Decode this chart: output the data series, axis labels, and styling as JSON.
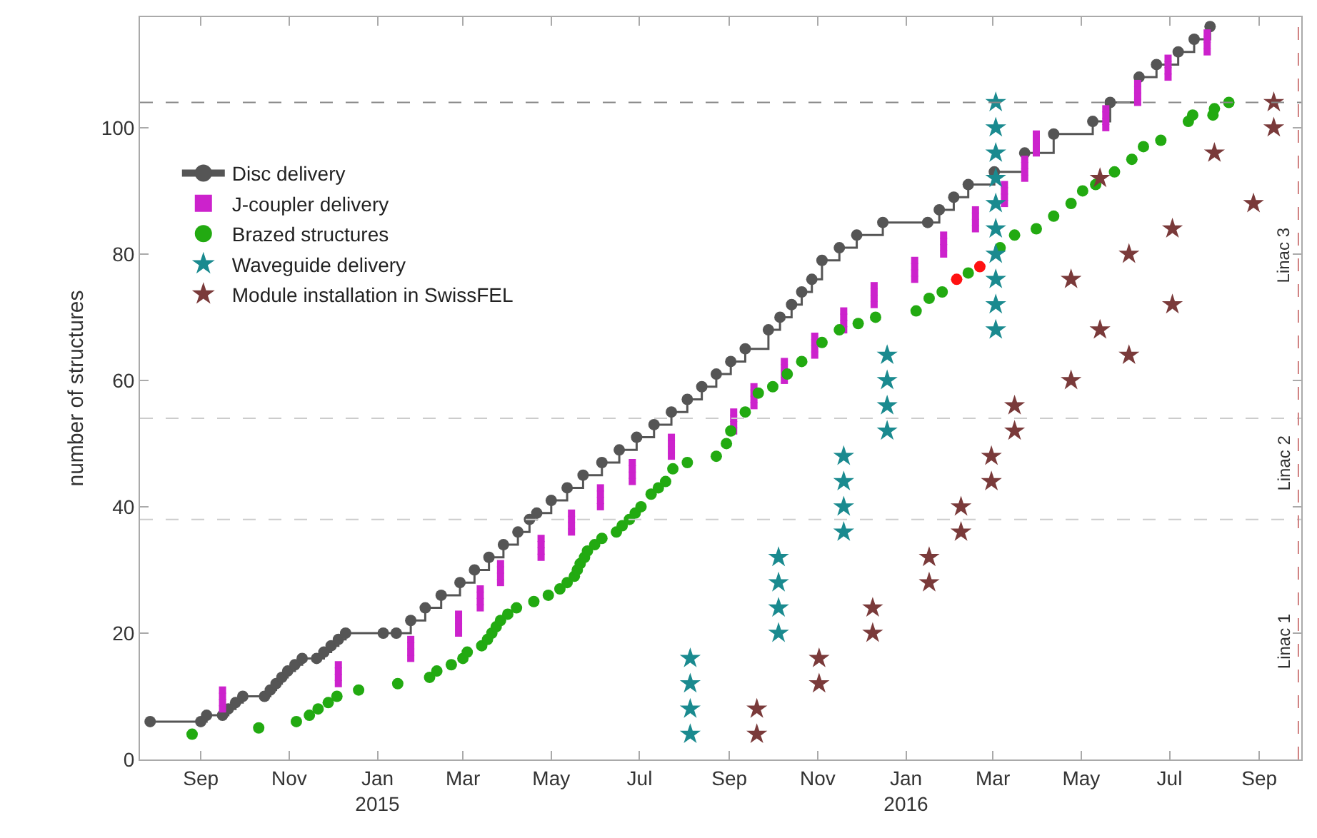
{
  "chart_data": {
    "type": "scatter",
    "ylabel": "number of structures",
    "xlim": [
      "2014-07-21",
      "2016-09-30"
    ],
    "xticks": [
      {
        "value": "2014-09-01",
        "label": "Sep"
      },
      {
        "value": "2014-11-01",
        "label": "Nov"
      },
      {
        "value": "2015-01-01",
        "label": "Jan\n2015"
      },
      {
        "value": "2015-03-01",
        "label": "Mar"
      },
      {
        "value": "2015-05-01",
        "label": "May"
      },
      {
        "value": "2015-07-01",
        "label": "Jul"
      },
      {
        "value": "2015-09-01",
        "label": "Sep"
      },
      {
        "value": "2015-11-01",
        "label": "Nov"
      },
      {
        "value": "2016-01-01",
        "label": "Jan\n2016"
      },
      {
        "value": "2016-03-01",
        "label": "Mar"
      },
      {
        "value": "2016-05-01",
        "label": "May"
      },
      {
        "value": "2016-07-01",
        "label": "Jul"
      },
      {
        "value": "2016-09-01",
        "label": "Sep"
      }
    ],
    "ylim": [
      0,
      117.5
    ],
    "yticks": [
      0,
      20,
      40,
      60,
      80,
      100
    ],
    "grid": false,
    "legend": "top left",
    "series": [
      {
        "name": "Disc delivery",
        "type": "step",
        "marker": "circle",
        "color": "#555555",
        "x": [
          "2014-07-28",
          "2014-09-01",
          "2014-09-05",
          "2014-09-16",
          "2014-09-20",
          "2014-09-25",
          "2014-09-30",
          "2014-10-15",
          "2014-10-19",
          "2014-10-23",
          "2014-10-27",
          "2014-10-31",
          "2014-11-05",
          "2014-11-10",
          "2014-11-20",
          "2014-11-25",
          "2014-11-30",
          "2014-12-05",
          "2014-12-10",
          "2015-01-05",
          "2015-01-14",
          "2015-01-24",
          "2015-02-03",
          "2015-02-14",
          "2015-02-27",
          "2015-03-09",
          "2015-03-19",
          "2015-03-29",
          "2015-04-08",
          "2015-04-16",
          "2015-04-21",
          "2015-05-01",
          "2015-05-12",
          "2015-05-23",
          "2015-06-05",
          "2015-06-17",
          "2015-06-29",
          "2015-07-11",
          "2015-07-23",
          "2015-08-03",
          "2015-08-13",
          "2015-08-23",
          "2015-09-02",
          "2015-09-12",
          "2015-09-28",
          "2015-10-06",
          "2015-10-14",
          "2015-10-21",
          "2015-10-28",
          "2015-11-04",
          "2015-11-16",
          "2015-11-28",
          "2015-12-16",
          "2016-01-16",
          "2016-01-24",
          "2016-02-03",
          "2016-02-13",
          "2016-03-02",
          "2016-03-23",
          "2016-04-12",
          "2016-05-09",
          "2016-05-21",
          "2016-06-10",
          "2016-06-22",
          "2016-07-07",
          "2016-07-18",
          "2016-07-29"
        ],
        "values": [
          6,
          6,
          7,
          7,
          8,
          9,
          10,
          10,
          11,
          12,
          13,
          14,
          15,
          16,
          16,
          17,
          18,
          19,
          20,
          20,
          20,
          22,
          24,
          26,
          28,
          30,
          32,
          34,
          36,
          38,
          39,
          41,
          43,
          45,
          47,
          49,
          51,
          53,
          55,
          57,
          59,
          61,
          63,
          65,
          68,
          70,
          72,
          74,
          76,
          79,
          81,
          83,
          85,
          85,
          87,
          89,
          91,
          93,
          96,
          99,
          101,
          104,
          108,
          110,
          112,
          114,
          116
        ]
      },
      {
        "name": "J-coupler delivery",
        "marker": "square",
        "color": "#cc22cc",
        "x": [
          "2014-09-16",
          "2014-09-16",
          "2014-09-16",
          "2014-09-16",
          "2014-12-05",
          "2014-12-05",
          "2014-12-05",
          "2014-12-05",
          "2015-01-24",
          "2015-01-24",
          "2015-01-24",
          "2015-01-24",
          "2015-02-26",
          "2015-02-26",
          "2015-02-26",
          "2015-02-26",
          "2015-03-13",
          "2015-03-13",
          "2015-03-13",
          "2015-03-13",
          "2015-03-27",
          "2015-03-27",
          "2015-03-27",
          "2015-03-27",
          "2015-04-24",
          "2015-04-24",
          "2015-04-24",
          "2015-04-24",
          "2015-05-15",
          "2015-05-15",
          "2015-05-15",
          "2015-05-15",
          "2015-06-04",
          "2015-06-04",
          "2015-06-04",
          "2015-06-04",
          "2015-06-26",
          "2015-06-26",
          "2015-06-26",
          "2015-06-26",
          "2015-07-23",
          "2015-07-23",
          "2015-07-23",
          "2015-07-23",
          "2015-09-04",
          "2015-09-04",
          "2015-09-04",
          "2015-09-04",
          "2015-09-18",
          "2015-09-18",
          "2015-09-18",
          "2015-09-18",
          "2015-10-09",
          "2015-10-09",
          "2015-10-09",
          "2015-10-09",
          "2015-10-30",
          "2015-10-30",
          "2015-10-30",
          "2015-10-30",
          "2015-11-19",
          "2015-11-19",
          "2015-11-19",
          "2015-11-19",
          "2015-12-10",
          "2015-12-10",
          "2015-12-10",
          "2015-12-10",
          "2016-01-07",
          "2016-01-07",
          "2016-01-07",
          "2016-01-07",
          "2016-01-27",
          "2016-01-27",
          "2016-01-27",
          "2016-01-27",
          "2016-02-18",
          "2016-02-18",
          "2016-02-18",
          "2016-02-18",
          "2016-03-09",
          "2016-03-09",
          "2016-03-09",
          "2016-03-09",
          "2016-03-23",
          "2016-03-23",
          "2016-03-23",
          "2016-03-23",
          "2016-03-31",
          "2016-03-31",
          "2016-03-31",
          "2016-03-31",
          "2016-05-18",
          "2016-05-18",
          "2016-05-18",
          "2016-05-18",
          "2016-06-09",
          "2016-06-09",
          "2016-06-09",
          "2016-06-09",
          "2016-06-30",
          "2016-06-30",
          "2016-06-30",
          "2016-06-30",
          "2016-07-27",
          "2016-07-27",
          "2016-07-27",
          "2016-07-27"
        ],
        "values": [
          8,
          9,
          10,
          11,
          12,
          13,
          14,
          15,
          16,
          17,
          18,
          19,
          20,
          21,
          22,
          23,
          24,
          25,
          26,
          27,
          28,
          29,
          30,
          31,
          32,
          33,
          34,
          35,
          36,
          37,
          38,
          39,
          40,
          41,
          42,
          43,
          44,
          45,
          46,
          47,
          48,
          49,
          50,
          51,
          52,
          53,
          54,
          55,
          56,
          57,
          58,
          59,
          60,
          61,
          62,
          63,
          64,
          65,
          66,
          67,
          68,
          69,
          70,
          71,
          72,
          73,
          74,
          75,
          76,
          77,
          78,
          79,
          80,
          81,
          82,
          83,
          84,
          85,
          86,
          87,
          88,
          89,
          90,
          91,
          92,
          93,
          94,
          95,
          96,
          97,
          98,
          99,
          100,
          101,
          102,
          103,
          104,
          105,
          106,
          107,
          108,
          109,
          110,
          111,
          112,
          113,
          114,
          115
        ]
      },
      {
        "name": "Brazed structures",
        "marker": "circle",
        "color": "#22aa11",
        "x": [
          "2014-08-26",
          "2014-10-11",
          "2014-11-06",
          "2014-11-15",
          "2014-11-21",
          "2014-11-28",
          "2014-12-04",
          "2014-12-19",
          "2015-01-15",
          "2015-02-06",
          "2015-02-11",
          "2015-02-21",
          "2015-03-01",
          "2015-03-04",
          "2015-03-14",
          "2015-03-18",
          "2015-03-21",
          "2015-03-24",
          "2015-03-27",
          "2015-04-01",
          "2015-04-07",
          "2015-04-19",
          "2015-04-29",
          "2015-05-07",
          "2015-05-12",
          "2015-05-17",
          "2015-05-19",
          "2015-05-21",
          "2015-05-24",
          "2015-05-26",
          "2015-05-31",
          "2015-06-05",
          "2015-06-15",
          "2015-06-19",
          "2015-06-24",
          "2015-06-28",
          "2015-07-02",
          "2015-07-09",
          "2015-07-14",
          "2015-07-19",
          "2015-07-24",
          "2015-08-03",
          "2015-08-23",
          "2015-08-30",
          "2015-09-02",
          "2015-09-12",
          "2015-09-21",
          "2015-10-01",
          "2015-10-11",
          "2015-10-21",
          "2015-11-04",
          "2015-11-16",
          "2015-11-29",
          "2015-12-11",
          "2016-01-08",
          "2016-01-17",
          "2016-01-26",
          "2016-02-13",
          "2016-03-06",
          "2016-03-16",
          "2016-03-31",
          "2016-04-12",
          "2016-04-24",
          "2016-05-02",
          "2016-05-11",
          "2016-05-24",
          "2016-06-05",
          "2016-06-13",
          "2016-06-25",
          "2016-07-14",
          "2016-07-17",
          "2016-07-31",
          "2016-08-01",
          "2016-08-11"
        ],
        "values": [
          4,
          5,
          6,
          7,
          8,
          9,
          10,
          11,
          12,
          13,
          14,
          15,
          16,
          17,
          18,
          19,
          20,
          21,
          22,
          23,
          24,
          25,
          26,
          27,
          28,
          29,
          30,
          31,
          32,
          33,
          34,
          35,
          36,
          37,
          38,
          39,
          40,
          42,
          43,
          44,
          46,
          47,
          48,
          50,
          52,
          55,
          58,
          59,
          61,
          63,
          66,
          68,
          69,
          70,
          71,
          73,
          74,
          77,
          81,
          83,
          84,
          86,
          88,
          90,
          91,
          93,
          95,
          97,
          98,
          101,
          102,
          102,
          103,
          104
        ]
      },
      {
        "marker": "circle",
        "color": "#ff1111",
        "x": [
          "2016-02-05",
          "2016-02-21"
        ],
        "values": [
          76,
          78
        ]
      },
      {
        "name": "Waveguide delivery",
        "marker": "star",
        "color": "#1a8a8f",
        "x": [
          "2015-08-05",
          "2015-08-05",
          "2015-08-05",
          "2015-08-05",
          "2015-10-05",
          "2015-10-05",
          "2015-10-05",
          "2015-10-05",
          "2015-11-19",
          "2015-11-19",
          "2015-11-19",
          "2015-11-19",
          "2015-12-19",
          "2015-12-19",
          "2015-12-19",
          "2015-12-19",
          "2016-03-03",
          "2016-03-03",
          "2016-03-03",
          "2016-03-03",
          "2016-03-03",
          "2016-03-03",
          "2016-03-03",
          "2016-03-03",
          "2016-03-03",
          "2016-03-03"
        ],
        "values": [
          4,
          8,
          12,
          16,
          20,
          24,
          28,
          32,
          36,
          40,
          44,
          48,
          52,
          56,
          60,
          64,
          68,
          72,
          76,
          80,
          84,
          88,
          92,
          96,
          100,
          104
        ]
      },
      {
        "name": "Module installation in SwissFEL",
        "marker": "star",
        "color": "#7a3a3a",
        "x": [
          "2015-09-20",
          "2015-09-20",
          "2015-11-02",
          "2015-11-02",
          "2015-12-09",
          "2015-12-09",
          "2016-01-17",
          "2016-01-17",
          "2016-02-08",
          "2016-02-08",
          "2016-02-29",
          "2016-02-29",
          "2016-03-16",
          "2016-03-16",
          "2016-04-24",
          "2016-04-24",
          "2016-05-14",
          "2016-05-14",
          "2016-06-03",
          "2016-06-03",
          "2016-07-03",
          "2016-07-03",
          "2016-08-01",
          "2016-08-28",
          "2016-09-11",
          "2016-09-11"
        ],
        "values": [
          4,
          8,
          12,
          16,
          20,
          24,
          28,
          32,
          36,
          40,
          44,
          48,
          52,
          56,
          60,
          76,
          68,
          92,
          64,
          80,
          72,
          84,
          96,
          88,
          100,
          104
        ]
      }
    ],
    "ref_lines": [
      {
        "axis": "y",
        "value": 104,
        "color": "#888888",
        "line_style": "dashed"
      },
      {
        "axis": "y",
        "value": 54,
        "color": "#cccccc",
        "line_style": "dashed"
      },
      {
        "axis": "y",
        "value": 38,
        "color": "#cccccc",
        "line_style": "dashed"
      },
      {
        "axis": "x",
        "value": "2016-09-28",
        "color": "#d08080",
        "line_style": "dashed"
      }
    ],
    "annotations": [
      "Linac 3",
      "Linac 2",
      "Linac 1"
    ]
  }
}
